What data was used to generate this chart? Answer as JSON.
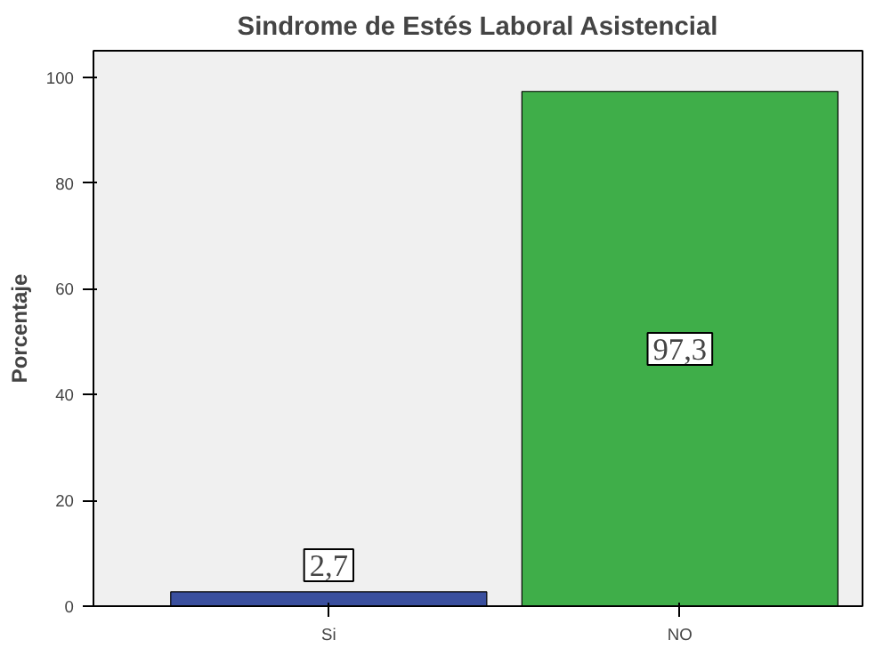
{
  "chart_data": {
    "type": "bar",
    "title": "Sindrome de Estés Laboral Asistencial",
    "ylabel": "Porcentaje",
    "categories": [
      "Si",
      "NO"
    ],
    "values": [
      2.7,
      97.3
    ],
    "colors": [
      "#3a4f9e",
      "#3fae49"
    ],
    "value_labels": [
      "2,7",
      "97,3"
    ],
    "ylim": [
      0,
      105
    ],
    "yticks": [
      0,
      20,
      40,
      60,
      80,
      100
    ],
    "grid": false
  }
}
